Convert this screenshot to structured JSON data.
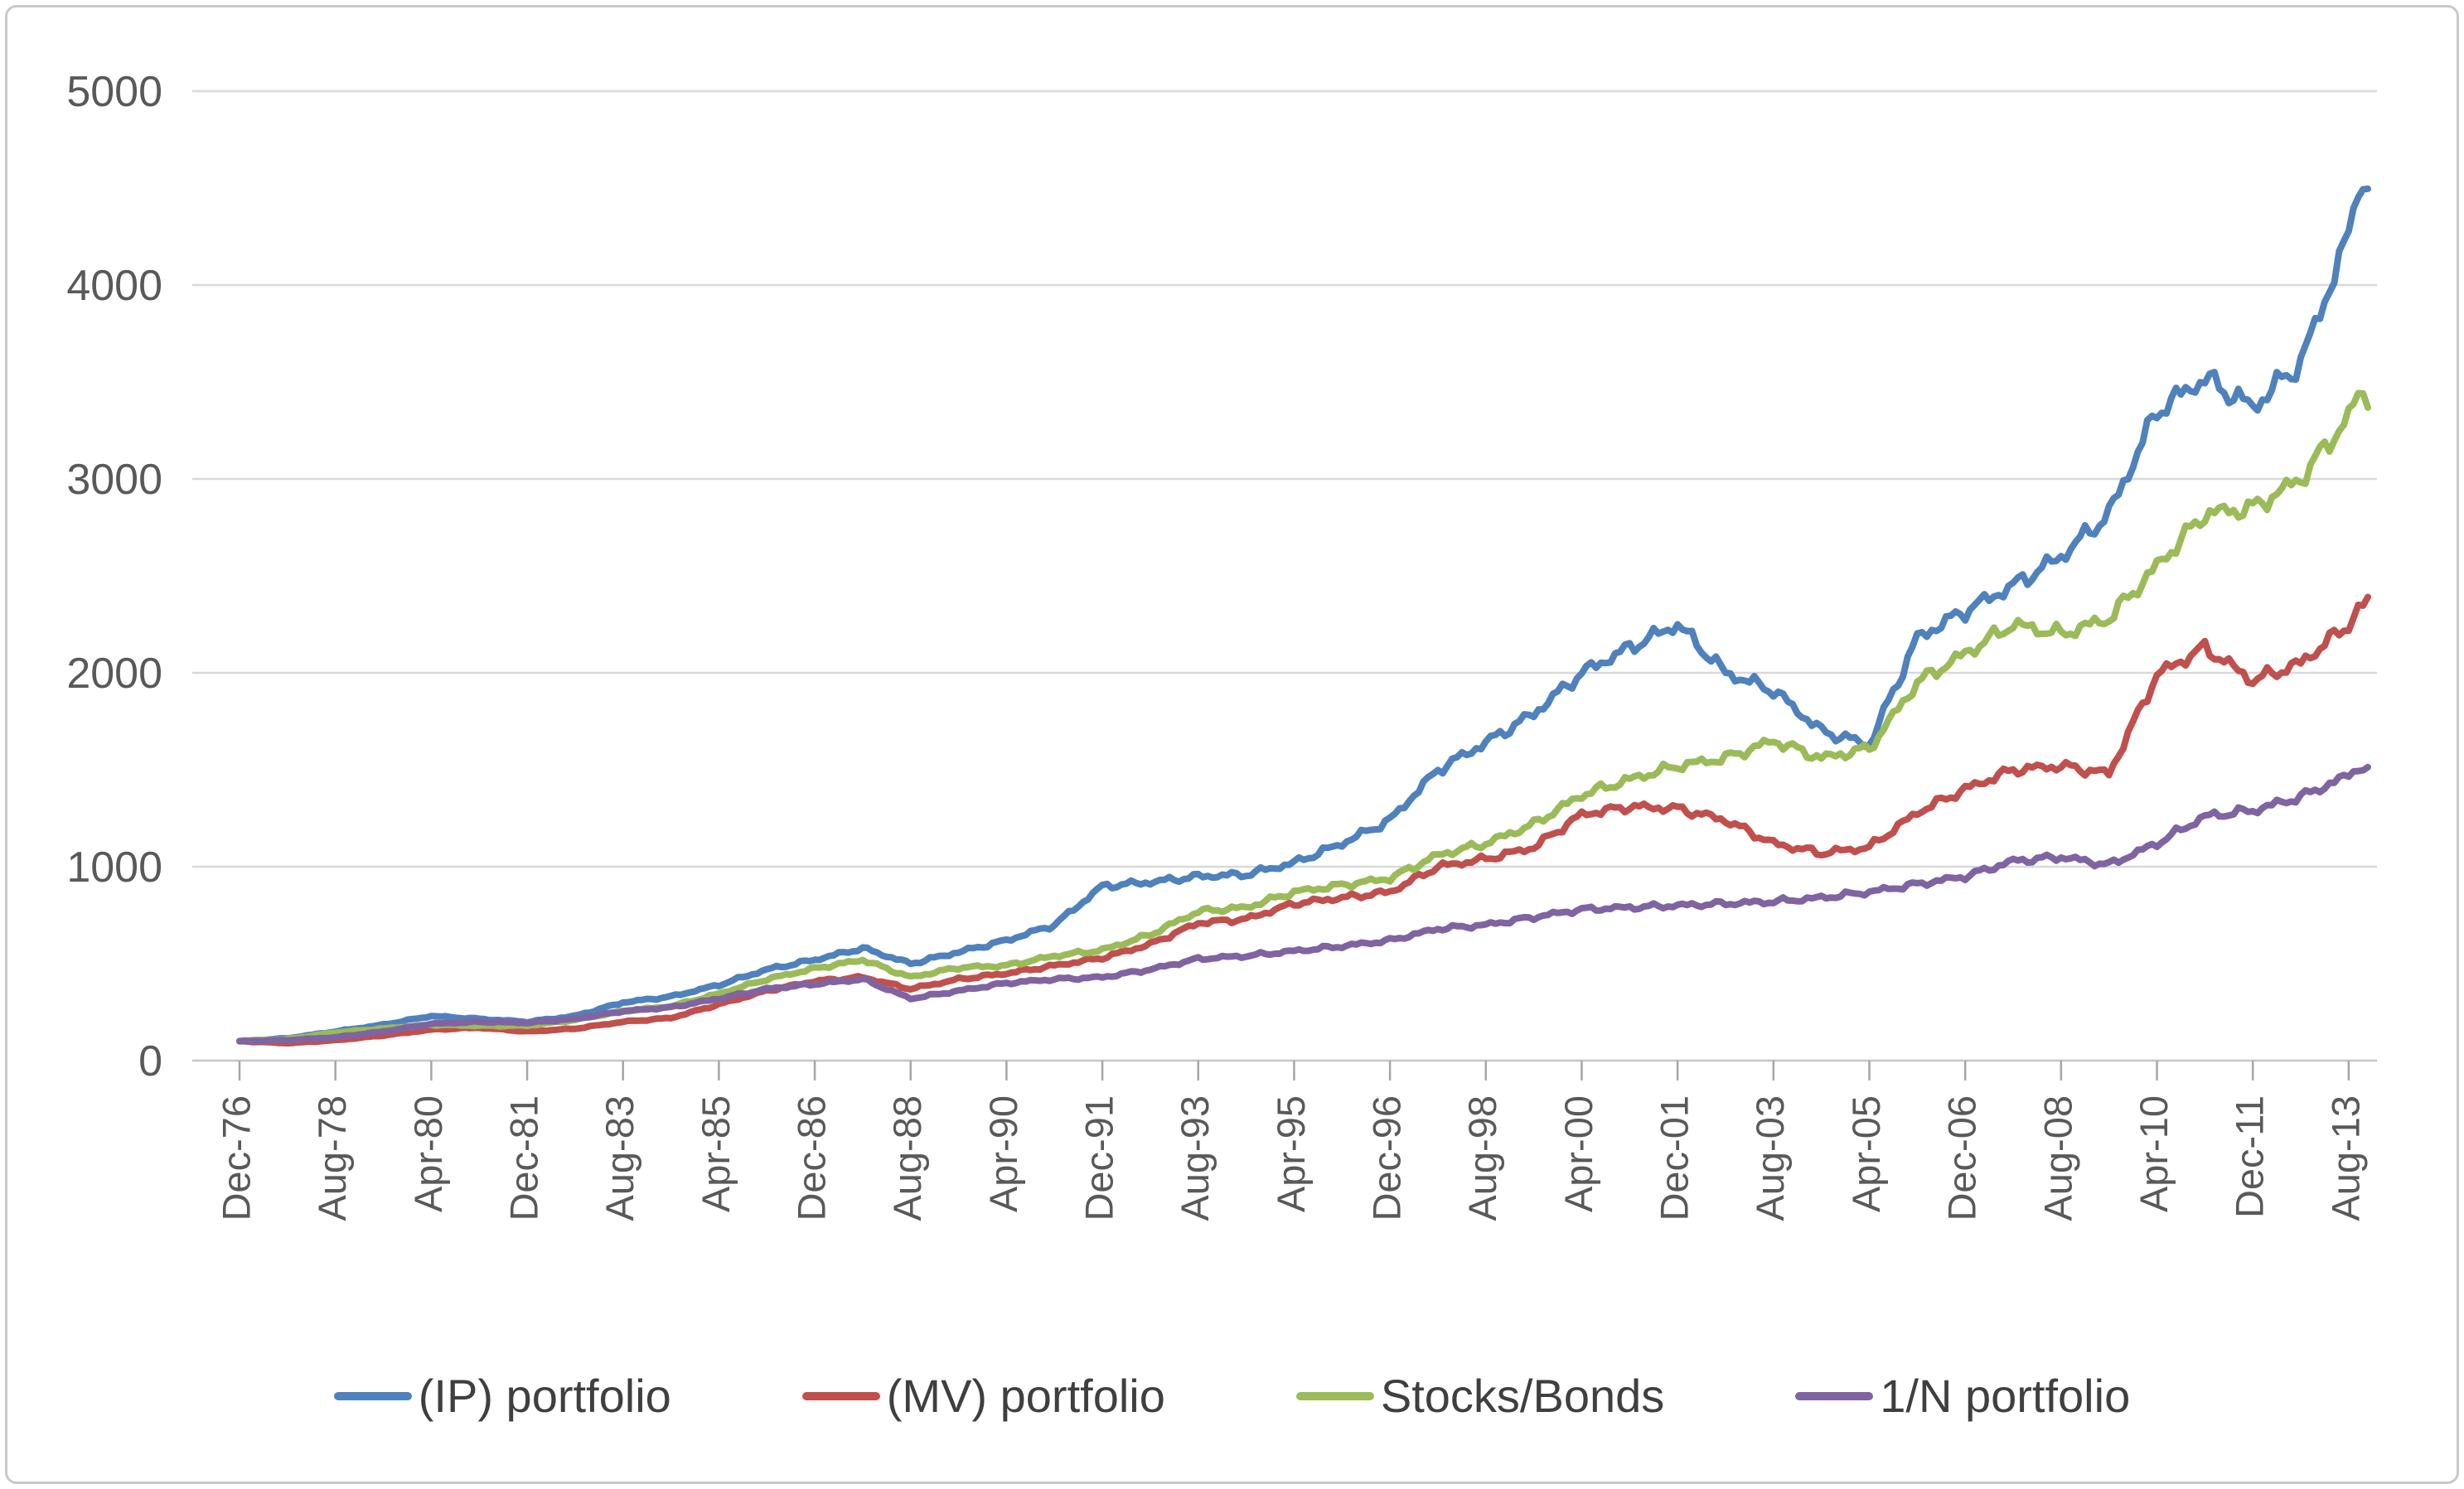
{
  "chart_data": {
    "type": "line",
    "title": "",
    "xlabel": "",
    "ylabel": "",
    "grid": "horizontal",
    "legend_position": "bottom",
    "y_axis": {
      "range": [
        0,
        5000
      ],
      "ticks": [
        0,
        1000,
        2000,
        3000,
        4000,
        5000
      ]
    },
    "x_axis": {
      "tick_labels": [
        "Dec-76",
        "Aug-78",
        "Apr-80",
        "Dec-81",
        "Aug-83",
        "Apr-85",
        "Dec-86",
        "Aug-88",
        "Apr-90",
        "Dec-91",
        "Aug-93",
        "Apr-95",
        "Dec-96",
        "Aug-98",
        "Apr-00",
        "Dec-01",
        "Aug-03",
        "Apr-05",
        "Dec-06",
        "Aug-08",
        "Apr-10",
        "Dec-11",
        "Aug-13"
      ],
      "months_between_labels": 20,
      "total_months": 444
    },
    "anchor_months": [
      0,
      10,
      20,
      30,
      40,
      50,
      60,
      70,
      80,
      90,
      100,
      110,
      120,
      130,
      140,
      150,
      160,
      170,
      180,
      190,
      200,
      210,
      220,
      230,
      240,
      250,
      260,
      270,
      280,
      290,
      300,
      310,
      320,
      330,
      340,
      350,
      360,
      370,
      380,
      390,
      400,
      410,
      420,
      430,
      440,
      442,
      444
    ],
    "series": [
      {
        "name": "(IP) portfolio",
        "color": "#4F81BD",
        "values": [
          100,
          115,
          150,
          185,
          230,
          215,
          200,
          230,
          300,
          330,
          390,
          470,
          520,
          580,
          500,
          560,
          620,
          700,
          900,
          920,
          950,
          960,
          1020,
          1120,
          1240,
          1500,
          1640,
          1790,
          2000,
          2130,
          2250,
          2000,
          1910,
          1700,
          1630,
          2180,
          2320,
          2450,
          2600,
          2820,
          3350,
          3520,
          3370,
          3600,
          4250,
          4550,
          4470
        ]
      },
      {
        "name": "(MV) portfolio",
        "color": "#C0504D",
        "values": [
          100,
          90,
          105,
          130,
          160,
          170,
          150,
          165,
          200,
          220,
          290,
          360,
          410,
          430,
          370,
          420,
          450,
          490,
          530,
          600,
          710,
          730,
          810,
          840,
          870,
          1000,
          1040,
          1100,
          1270,
          1310,
          1300,
          1240,
          1120,
          1070,
          1100,
          1280,
          1400,
          1500,
          1520,
          1480,
          1990,
          2130,
          1960,
          2050,
          2250,
          2320,
          2370
        ]
      },
      {
        "name": "Stocks/Bonds",
        "color": "#9BBB59",
        "values": [
          100,
          110,
          145,
          165,
          185,
          180,
          180,
          210,
          255,
          280,
          345,
          420,
          475,
          520,
          430,
          480,
          490,
          540,
          570,
          650,
          770,
          790,
          870,
          905,
          940,
          1060,
          1120,
          1220,
          1370,
          1450,
          1520,
          1560,
          1650,
          1560,
          1610,
          1950,
          2100,
          2250,
          2200,
          2280,
          2550,
          2820,
          2850,
          3000,
          3320,
          3430,
          3430
        ]
      },
      {
        "name": "1/N portfolio",
        "color": "#8064A2",
        "values": [
          100,
          105,
          120,
          150,
          190,
          200,
          195,
          215,
          255,
          275,
          320,
          370,
          395,
          420,
          320,
          360,
          400,
          420,
          430,
          470,
          525,
          540,
          565,
          590,
          620,
          680,
          700,
          740,
          780,
          790,
          800,
          810,
          820,
          840,
          870,
          910,
          950,
          1030,
          1050,
          1010,
          1120,
          1260,
          1290,
          1360,
          1470,
          1520,
          1490
        ]
      }
    ],
    "colors": {
      "gridline": "#d9d9d9",
      "axis_line": "#c6c6c6",
      "tick": "#a6a6a6",
      "axis_text": "#595959",
      "legend_text": "#3f3f3f"
    }
  }
}
